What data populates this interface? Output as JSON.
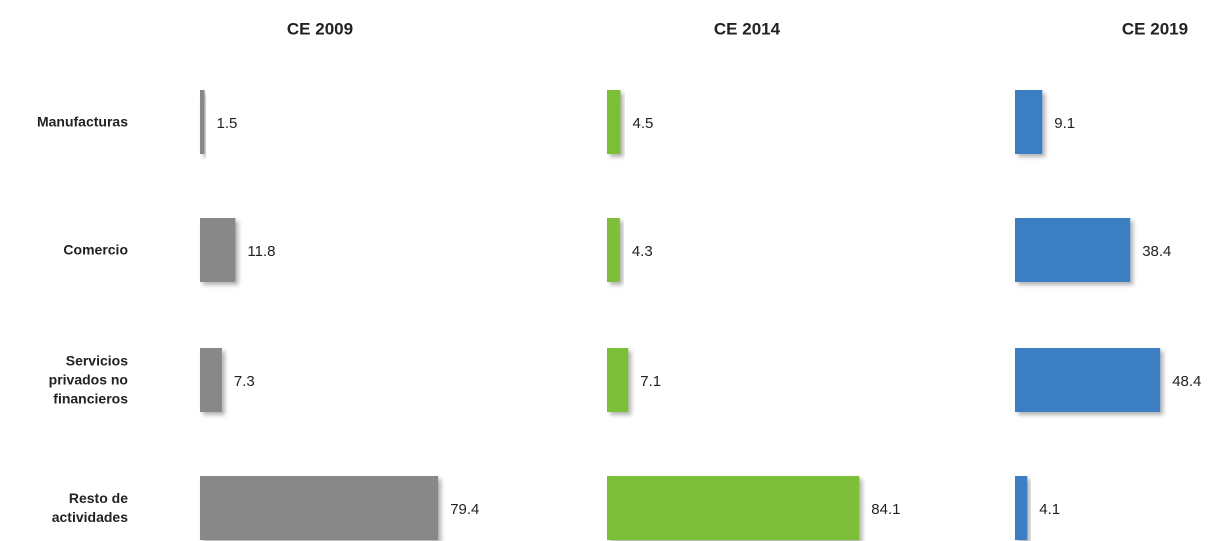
{
  "chart_data": {
    "type": "bar",
    "orientation": "horizontal",
    "categories": [
      "Manufacturas",
      "Comercio",
      "Servicios privados no financieros",
      "Resto de actividades"
    ],
    "series": [
      {
        "name": "CE 2009",
        "color": "#888888",
        "values": [
          1.5,
          11.8,
          7.3,
          79.4
        ]
      },
      {
        "name": "CE 2014",
        "color": "#7dbf38",
        "values": [
          4.5,
          4.3,
          7.1,
          84.1
        ]
      },
      {
        "name": "CE 2019",
        "color": "#3a7ec2",
        "values": [
          9.1,
          38.4,
          48.4,
          4.1
        ]
      }
    ]
  }
}
